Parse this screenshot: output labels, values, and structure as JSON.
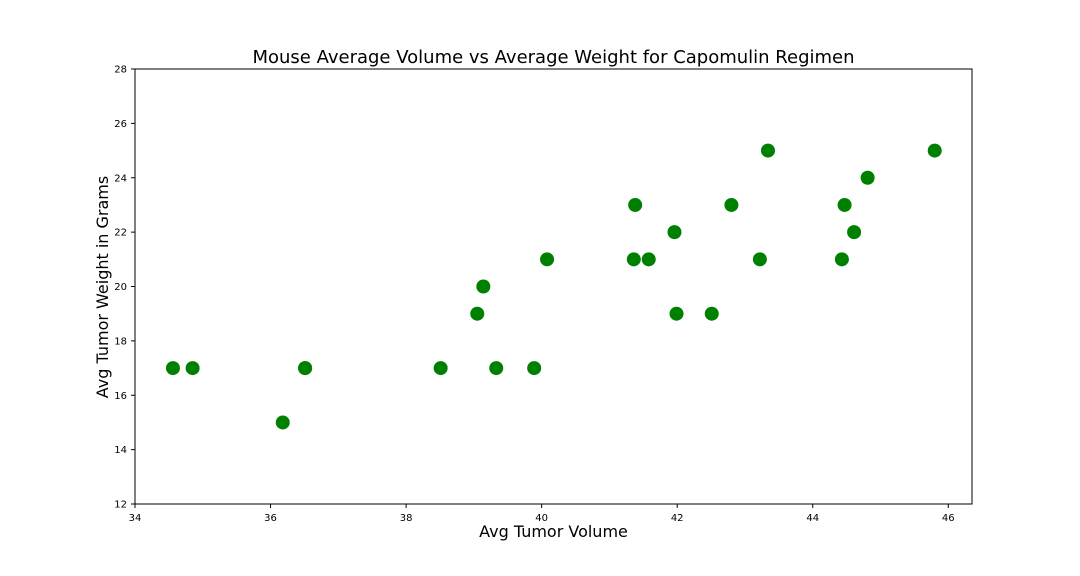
{
  "chart_data": {
    "type": "scatter",
    "title": "Mouse Average Volume vs Average Weight for Capomulin Regimen",
    "xlabel": "Avg Tumor Volume",
    "ylabel": "Avg Tumor Weight in Grams",
    "xlim": [
      34,
      46.35
    ],
    "ylim": [
      12,
      28
    ],
    "xticks": [
      "34",
      "36",
      "38",
      "40",
      "42",
      "44",
      "46"
    ],
    "yticks": [
      "12",
      "14",
      "16",
      "18",
      "20",
      "22",
      "24",
      "26",
      "28"
    ],
    "grid": false,
    "marker_color": "#008000",
    "points": [
      {
        "x": 34.56,
        "y": 17
      },
      {
        "x": 34.85,
        "y": 17
      },
      {
        "x": 36.18,
        "y": 15
      },
      {
        "x": 36.51,
        "y": 17
      },
      {
        "x": 36.51,
        "y": 17
      },
      {
        "x": 38.51,
        "y": 17
      },
      {
        "x": 39.05,
        "y": 19
      },
      {
        "x": 39.14,
        "y": 20
      },
      {
        "x": 39.33,
        "y": 17
      },
      {
        "x": 39.89,
        "y": 17
      },
      {
        "x": 40.08,
        "y": 21
      },
      {
        "x": 41.36,
        "y": 21
      },
      {
        "x": 41.38,
        "y": 23
      },
      {
        "x": 41.58,
        "y": 21
      },
      {
        "x": 41.96,
        "y": 22
      },
      {
        "x": 41.99,
        "y": 19
      },
      {
        "x": 42.51,
        "y": 19
      },
      {
        "x": 42.8,
        "y": 23
      },
      {
        "x": 43.22,
        "y": 21
      },
      {
        "x": 43.34,
        "y": 25
      },
      {
        "x": 44.43,
        "y": 21
      },
      {
        "x": 44.47,
        "y": 23
      },
      {
        "x": 44.61,
        "y": 22
      },
      {
        "x": 44.81,
        "y": 24
      },
      {
        "x": 45.8,
        "y": 25
      }
    ]
  }
}
